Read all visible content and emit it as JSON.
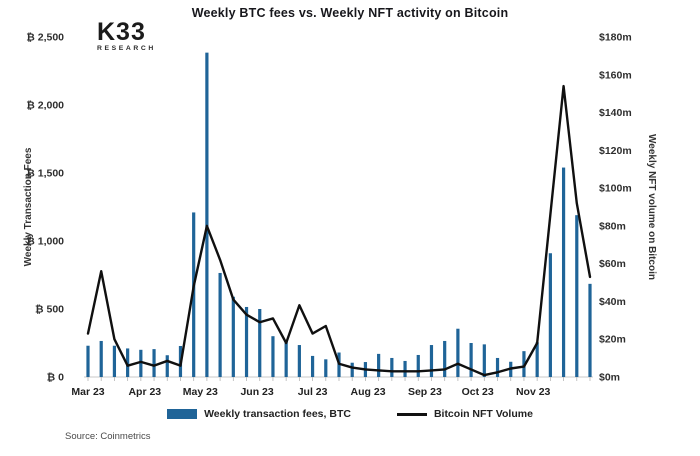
{
  "header": {
    "title": "Weekly BTC fees vs. Weekly NFT activity on Bitcoin",
    "logo": {
      "line1": "K33",
      "line2": "RESEARCH"
    }
  },
  "legend": {
    "items": [
      {
        "label": "Weekly transaction fees, BTC",
        "swatch": "bar",
        "color": "#1f6498"
      },
      {
        "label": "Bitcoin NFT Volume",
        "swatch": "line",
        "color": "#111111"
      }
    ]
  },
  "footer": {
    "source": "Source: Coinmetrics"
  },
  "colors": {
    "bar": "#1f6498",
    "line": "#101010",
    "axis": "#c9c9c9",
    "tick": "#b5b5b5",
    "text": "#2e2e2e"
  },
  "chart_data": {
    "type": "combo",
    "n_points": 39,
    "title": "Weekly BTC fees vs. Weekly NFT activity on Bitcoin",
    "x_axis": {
      "labels": [
        "Mar 23",
        "Apr 23",
        "May 23",
        "Jun 23",
        "Jul 23",
        "Aug 23",
        "Sep 23",
        "Oct 23",
        "Nov 23"
      ],
      "positions_week_index": [
        0,
        4.3,
        8.5,
        12.8,
        17,
        21.2,
        25.5,
        29.5,
        33.7
      ]
    },
    "left_axis": {
      "label": "Weekly Transaction Fees",
      "tick_labels": [
        "₿ 0",
        "₿ 500",
        "₿ 1,000",
        "₿ 1,500",
        "₿ 2,000",
        "₿ 2,500"
      ],
      "tick_values": [
        0,
        500,
        1000,
        1500,
        2000,
        2500
      ],
      "max": 2500
    },
    "right_axis": {
      "label": "Weekly NFT volume on Bitcoin",
      "tick_labels": [
        "$0m",
        "$20m",
        "$40m",
        "$60m",
        "$80m",
        "$100m",
        "$120m",
        "$140m",
        "$160m",
        "$180m"
      ],
      "tick_values": [
        0,
        20,
        40,
        60,
        80,
        100,
        120,
        140,
        160,
        180
      ],
      "max": 180
    },
    "series": [
      {
        "name": "Weekly transaction fees, BTC",
        "type": "bar",
        "axis": "left",
        "color": "#1f6498",
        "values": [
          230,
          265,
          230,
          210,
          200,
          205,
          160,
          228,
          1210,
          2385,
          765,
          590,
          515,
          500,
          300,
          265,
          235,
          155,
          130,
          180,
          105,
          110,
          170,
          140,
          118,
          162,
          235,
          265,
          355,
          250,
          240,
          140,
          112,
          190,
          255,
          910,
          1540,
          1190,
          685
        ]
      },
      {
        "name": "Bitcoin NFT Volume",
        "type": "line",
        "axis": "right",
        "color": "#101010",
        "values": [
          23,
          56,
          20,
          6,
          8,
          6,
          8.5,
          6,
          48,
          80,
          62,
          41,
          33,
          29,
          31,
          18,
          38,
          23,
          27,
          7,
          5,
          4,
          3.5,
          3,
          3,
          3,
          3.5,
          4,
          7,
          4,
          1,
          2.5,
          4.5,
          5.5,
          18,
          86,
          154,
          92,
          53
        ]
      }
    ]
  }
}
